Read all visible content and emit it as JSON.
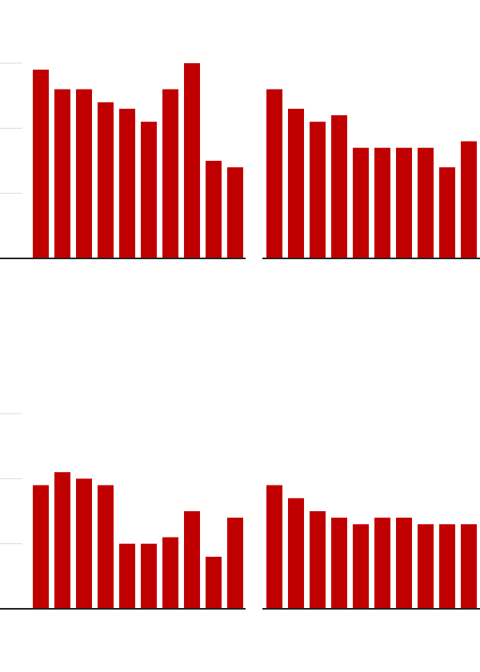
{
  "chart_data": [
    {
      "type": "bar",
      "values": [
        29,
        26,
        26,
        24,
        23,
        21,
        26,
        30,
        15,
        14
      ],
      "color": "#c00000",
      "ylim": [
        0,
        30
      ],
      "yticks": [
        10,
        20,
        30
      ],
      "grid": true
    },
    {
      "type": "bar",
      "values": [
        26,
        23,
        21,
        22,
        17,
        17,
        17,
        17,
        14,
        18
      ],
      "color": "#c00000",
      "ylim": [
        0,
        30
      ],
      "yticks": [
        10,
        20,
        30
      ],
      "grid": false
    },
    {
      "type": "bar",
      "values": [
        19,
        21,
        20,
        19,
        10,
        10,
        11,
        15,
        8,
        14
      ],
      "color": "#c00000",
      "ylim": [
        0,
        30
      ],
      "yticks": [
        10,
        20,
        30
      ],
      "grid": true
    },
    {
      "type": "bar",
      "values": [
        19,
        17,
        15,
        14,
        13,
        14,
        14,
        13,
        13,
        13
      ],
      "color": "#c00000",
      "ylim": [
        0,
        30
      ],
      "yticks": [
        10,
        20,
        30
      ],
      "grid": false
    }
  ]
}
